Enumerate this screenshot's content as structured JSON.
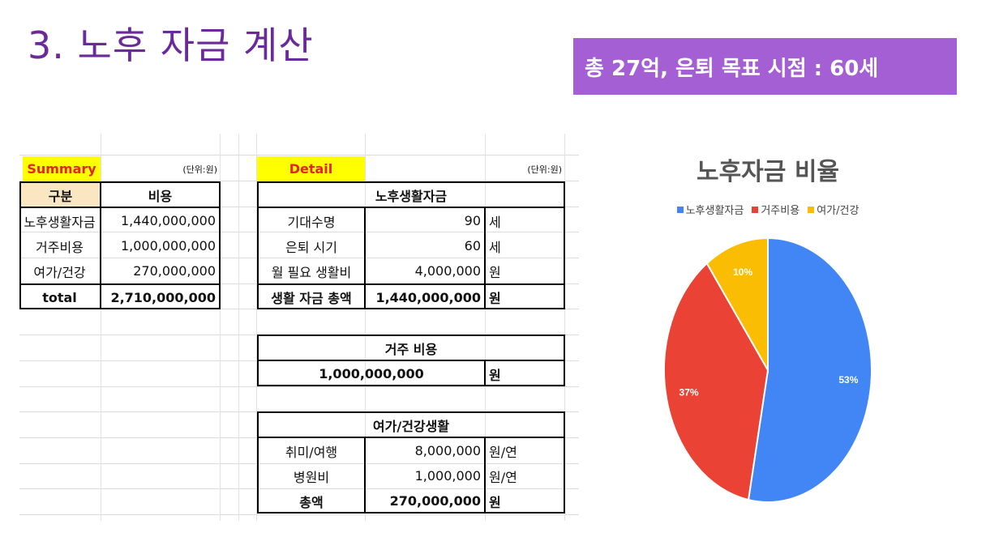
{
  "page": {
    "title": "3. 노후 자금 계산",
    "banner": "총 27억, 은퇴 목표 시점 : 60세"
  },
  "summary": {
    "label": "Summary",
    "unit": "(단위:원)",
    "col_category": "구분",
    "col_cost": "비용",
    "rows": [
      {
        "name": "노후생활자금",
        "value": "1,440,000,000"
      },
      {
        "name": "거주비용",
        "value": "1,000,000,000"
      },
      {
        "name": "여가/건강",
        "value": "270,000,000"
      }
    ],
    "total_label": "total",
    "total_value": "2,710,000,000"
  },
  "detail": {
    "label": "Detail",
    "unit": "(단위:원)",
    "living": {
      "header": "노후생활자금",
      "rows": [
        {
          "name": "기대수명",
          "value": "90",
          "unit": "세"
        },
        {
          "name": "은퇴 시기",
          "value": "60",
          "unit": "세"
        },
        {
          "name": "월 필요 생활비",
          "value": "4,000,000",
          "unit": "원"
        },
        {
          "name": "생활 자금 총액",
          "value": "1,440,000,000",
          "unit": "원"
        }
      ]
    },
    "housing": {
      "header": "거주 비용",
      "value": "1,000,000,000",
      "unit": "원"
    },
    "leisure": {
      "header": "여가/건강생활",
      "rows": [
        {
          "name": "취미/여행",
          "value": "8,000,000",
          "unit": "원/연"
        },
        {
          "name": "병원비",
          "value": "1,000,000",
          "unit": "원/연"
        },
        {
          "name": "총액",
          "value": "270,000,000",
          "unit": "원"
        }
      ]
    }
  },
  "chart_data": {
    "type": "pie",
    "title": "노후자금 비율",
    "legend_position": "top",
    "categories": [
      "노후생활자금",
      "거주비용",
      "여가/건강"
    ],
    "values": [
      53,
      37,
      10
    ],
    "labels": [
      "53%",
      "37%",
      "10%"
    ],
    "colors": [
      "#4285f4",
      "#ea4335",
      "#fbbc04"
    ]
  }
}
